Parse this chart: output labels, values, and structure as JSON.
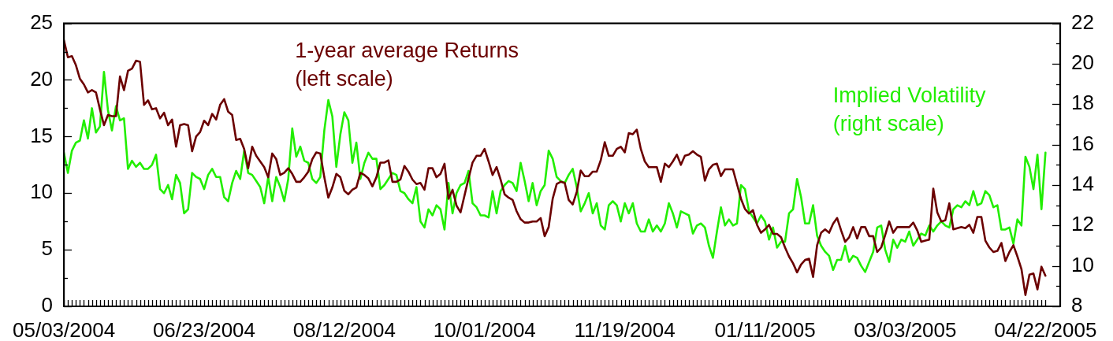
{
  "chart_data": {
    "type": "line",
    "categories": [
      "05/03/2004",
      null,
      null,
      null,
      null,
      null,
      null,
      null,
      null,
      null,
      null,
      null,
      null,
      null,
      null,
      null,
      null,
      null,
      null,
      null,
      null,
      null,
      null,
      null,
      null,
      null,
      null,
      null,
      null,
      null,
      null,
      null,
      null,
      null,
      null,
      "06/23/2004",
      null,
      null,
      null,
      null,
      null,
      null,
      null,
      null,
      null,
      null,
      null,
      null,
      null,
      null,
      null,
      null,
      null,
      null,
      null,
      null,
      null,
      null,
      null,
      null,
      null,
      null,
      null,
      null,
      null,
      null,
      null,
      null,
      null,
      null,
      "08/12/2004",
      null,
      null,
      null,
      null,
      null,
      null,
      null,
      null,
      null,
      null,
      null,
      null,
      null,
      null,
      null,
      null,
      null,
      null,
      null,
      null,
      null,
      null,
      null,
      null,
      null,
      null,
      null,
      null,
      null,
      null,
      null,
      null,
      null,
      null,
      "10/01/2004",
      null,
      null,
      null,
      null,
      null,
      null,
      null,
      null,
      null,
      null,
      null,
      null,
      null,
      null,
      null,
      null,
      null,
      null,
      null,
      null,
      null,
      null,
      null,
      null,
      null,
      null,
      null,
      null,
      null,
      null,
      null,
      null,
      null,
      null,
      "11/19/2004",
      null,
      null,
      null,
      null,
      null,
      null,
      null,
      null,
      null,
      null,
      null,
      null,
      null,
      null,
      null,
      null,
      null,
      null,
      null,
      null,
      null,
      null,
      null,
      null,
      null,
      null,
      null,
      null,
      null,
      null,
      null,
      null,
      null,
      null,
      "01/11/2005",
      null,
      null,
      null,
      null,
      null,
      null,
      null,
      null,
      null,
      null,
      null,
      null,
      null,
      null,
      null,
      null,
      null,
      null,
      null,
      null,
      null,
      null,
      null,
      null,
      null,
      null,
      null,
      null,
      null,
      null,
      null,
      null,
      null,
      null,
      "03/03/2005",
      null,
      null,
      null,
      null,
      null,
      null,
      null,
      null,
      null,
      null,
      null,
      null,
      null,
      null,
      null,
      null,
      null,
      null,
      null,
      null,
      null,
      null,
      null,
      null,
      null,
      null,
      null,
      null,
      null,
      null,
      null,
      null,
      null,
      null,
      "04/22/2005"
    ],
    "series": [
      {
        "name": "1-year average Returns\n(left scale)",
        "color": "#6b0000",
        "values": [
          23.5,
          22.0,
          22.1,
          21.3,
          20.1,
          19.6,
          18.9,
          19.1,
          18.9,
          17.4,
          16.0,
          16.9,
          16.8,
          16.8,
          20.3,
          19.1,
          20.8,
          21.0,
          21.7,
          21.6,
          17.8,
          18.2,
          17.4,
          17.5,
          16.6,
          17.1,
          16.0,
          16.5,
          14.1,
          16.0,
          16.1,
          16.0,
          13.7,
          15.0,
          15.4,
          16.4,
          16.0,
          17.0,
          16.5,
          17.8,
          18.3,
          17.2,
          16.9,
          14.7,
          14.8,
          13.9,
          12.2,
          14.1,
          13.3,
          12.8,
          12.3,
          11.4,
          13.5,
          13.0,
          11.6,
          11.8,
          12.2,
          11.7,
          11.0,
          11.0,
          11.4,
          11.9,
          13.0,
          13.6,
          13.5,
          11.4,
          9.6,
          10.5,
          11.7,
          11.4,
          10.2,
          9.9,
          10.3,
          10.5,
          11.8,
          11.6,
          11.3,
          10.6,
          11.4,
          12.7,
          12.7,
          12.9,
          11.0,
          11.0,
          11.2,
          12.4,
          11.9,
          11.2,
          10.8,
          10.9,
          10.3,
          12.2,
          12.2,
          11.4,
          11.7,
          12.6,
          9.5,
          10.3,
          8.9,
          8.3,
          9.8,
          11.3,
          12.7,
          13.3,
          13.3,
          13.9,
          12.8,
          11.6,
          12.3,
          11.2,
          9.9,
          9.6,
          9.4,
          8.4,
          7.7,
          7.4,
          7.4,
          7.5,
          7.5,
          7.8,
          6.2,
          7.0,
          9.5,
          10.8,
          11.0,
          10.9,
          9.4,
          9.0,
          10.1,
          12.0,
          11.5,
          11.5,
          11.9,
          11.9,
          12.9,
          14.5,
          13.3,
          13.3,
          13.9,
          14.1,
          13.6,
          15.3,
          15.2,
          15.6,
          13.9,
          12.8,
          12.3,
          12.3,
          12.3,
          11.0,
          12.6,
          12.3,
          12.8,
          13.4,
          12.5,
          13.3,
          13.4,
          13.7,
          13.4,
          13.2,
          11.1,
          12.1,
          12.5,
          12.6,
          11.5,
          12.1,
          12.1,
          12.1,
          10.8,
          9.5,
          8.6,
          8.2,
          8.5,
          7.2,
          6.5,
          6.8,
          7.2,
          6.4,
          6.4,
          6.1,
          5.2,
          4.4,
          3.8,
          3.0,
          3.7,
          4.1,
          4.2,
          2.6,
          5.4,
          6.5,
          6.8,
          6.5,
          7.3,
          7.8,
          6.7,
          5.7,
          6.1,
          7.0,
          6.0,
          7.0,
          7.0,
          6.2,
          6.2,
          4.8,
          5.2,
          6.3,
          7.5,
          6.5,
          7.0,
          7.0,
          7.0,
          7.0,
          7.4,
          6.7,
          5.7,
          5.8,
          5.9,
          10.4,
          8.3,
          7.5,
          7.6,
          9.1,
          6.8,
          6.9,
          7.0,
          6.9,
          7.2,
          6.5,
          7.9,
          7.9,
          5.8,
          5.2,
          4.8,
          4.9,
          5.6,
          4.0,
          4.8,
          5.4,
          4.4,
          3.3,
          1.0,
          2.8,
          2.9,
          1.5,
          3.5,
          2.7
        ]
      },
      {
        "name": "Implied Volatility\n(right scale)",
        "color": "#22ee00",
        "axis": "y2",
        "values": [
          15.6,
          14.6,
          15.7,
          16.1,
          16.2,
          17.2,
          16.3,
          17.8,
          16.6,
          16.9,
          19.6,
          17.7,
          16.7,
          17.9,
          17.2,
          17.3,
          14.8,
          15.2,
          14.9,
          15.1,
          14.8,
          14.8,
          15.0,
          15.5,
          13.8,
          13.6,
          14.0,
          13.3,
          14.5,
          14.1,
          12.6,
          12.8,
          14.6,
          14.4,
          14.3,
          13.8,
          14.5,
          14.8,
          14.4,
          14.4,
          13.4,
          13.2,
          14.1,
          14.7,
          14.3,
          15.7,
          14.6,
          14.5,
          14.2,
          13.9,
          13.1,
          14.4,
          13.2,
          14.4,
          13.9,
          13.2,
          14.3,
          16.8,
          15.4,
          15.9,
          15.2,
          15.1,
          14.3,
          14.1,
          14.4,
          16.7,
          18.2,
          17.4,
          14.9,
          16.5,
          17.6,
          17.2,
          15.1,
          16.1,
          14.3,
          15.1,
          15.6,
          15.3,
          15.3,
          13.8,
          14.0,
          14.3,
          14.6,
          14.5,
          13.7,
          13.6,
          13.3,
          13.1,
          13.9,
          12.2,
          11.9,
          12.8,
          12.5,
          13.0,
          12.8,
          11.8,
          14.1,
          12.6,
          13.6,
          14.0,
          14.1,
          14.7,
          13.1,
          12.9,
          12.5,
          12.5,
          12.4,
          13.7,
          12.6,
          13.7,
          14.0,
          14.2,
          14.1,
          13.7,
          15.1,
          14.2,
          13.2,
          14.1,
          13.0,
          13.7,
          14.0,
          15.7,
          15.3,
          14.4,
          14.2,
          14.1,
          14.5,
          14.8,
          13.9,
          12.7,
          13.1,
          13.6,
          12.6,
          13.1,
          12.0,
          11.8,
          13.0,
          13.2,
          13.0,
          12.2,
          13.1,
          12.6,
          13.1,
          12.1,
          11.7,
          11.7,
          12.3,
          11.7,
          12.0,
          11.7,
          12.1,
          13.1,
          12.6,
          11.9,
          12.7,
          12.6,
          12.5,
          11.6,
          12.0,
          12.1,
          11.9,
          11.0,
          10.4,
          11.7,
          12.9,
          12.0,
          12.3,
          12.0,
          12.1,
          14.0,
          13.8,
          12.7,
          12.4,
          12.1,
          12.5,
          12.2,
          11.3,
          11.9,
          10.9,
          11.2,
          11.2,
          12.6,
          12.8,
          14.3,
          13.4,
          12.1,
          12.1,
          13.0,
          11.5,
          11.0,
          10.7,
          10.5,
          9.8,
          10.3,
          10.3,
          11.0,
          10.2,
          10.5,
          10.4,
          10.0,
          9.7,
          10.2,
          10.7,
          11.9,
          12.0,
          10.8,
          10.2,
          11.3,
          10.9,
          11.3,
          11.2,
          11.7,
          11.0,
          11.3,
          11.6,
          11.5,
          12.0,
          11.7,
          12.0,
          12.2,
          12.0,
          11.9,
          12.8,
          13.0,
          12.9,
          13.2,
          13.0,
          13.7,
          13.0,
          13.1,
          13.7,
          13.5,
          12.9,
          13.0,
          11.8,
          11.8,
          11.9,
          11.1,
          12.3,
          12.0,
          15.4,
          14.9,
          13.8,
          15.5,
          12.8,
          15.6
        ]
      }
    ],
    "ylim": [
      0,
      25
    ],
    "yticks": [
      0,
      {
        "value": 2.5,
        "label": null
      },
      5,
      {
        "value": 7.5,
        "label": null
      },
      10,
      {
        "value": 12.5,
        "label": null
      },
      15,
      {
        "value": 17.5,
        "label": null
      },
      20,
      {
        "value": 22.5,
        "label": null
      },
      25
    ],
    "y2lim": [
      8,
      22
    ],
    "y2ticks": [
      8,
      {
        "value": 9,
        "label": null
      },
      10,
      {
        "value": 11,
        "label": null
      },
      12,
      {
        "value": 13,
        "label": null
      },
      14,
      {
        "value": 15,
        "label": null
      },
      16,
      {
        "value": 17,
        "label": null
      },
      18,
      {
        "value": 19,
        "label": null
      },
      20,
      {
        "value": 21,
        "label": null
      },
      22
    ]
  }
}
